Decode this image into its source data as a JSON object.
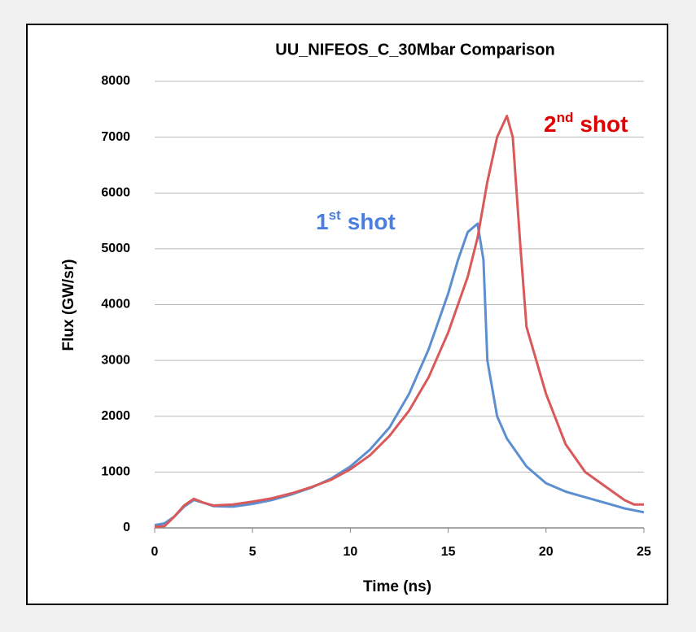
{
  "chart_data": {
    "type": "line",
    "title": "UU_NIFEOS_C_30Mbar Comparison",
    "x_label": "Time (ns)",
    "y_label": "Flux (GW/sr)",
    "xlim": [
      0,
      25
    ],
    "xticks": [
      0,
      5,
      10,
      15,
      20,
      25
    ],
    "ylim": [
      0,
      8000
    ],
    "yticks": [
      0,
      1000,
      2000,
      3000,
      4000,
      5000,
      6000,
      7000,
      8000
    ],
    "grid": true,
    "series": [
      {
        "color": "#5b8fd0",
        "x": [
          0,
          0.5,
          1,
          1.5,
          2,
          2.5,
          3,
          4,
          5,
          6,
          7,
          8,
          9,
          10,
          11,
          12,
          13,
          14,
          15,
          15.5,
          16,
          16.5,
          16.8,
          17,
          17.5,
          18,
          19,
          20,
          21,
          22,
          23,
          24,
          25
        ],
        "values": [
          50,
          80,
          200,
          380,
          500,
          450,
          390,
          380,
          430,
          500,
          600,
          720,
          880,
          1100,
          1400,
          1800,
          2400,
          3200,
          4200,
          4800,
          5300,
          5450,
          4800,
          3000,
          2000,
          1600,
          1100,
          800,
          650,
          550,
          450,
          350,
          280
        ]
      },
      {
        "color": "#d9595a",
        "x": [
          0,
          0.5,
          1,
          1.5,
          2,
          2.5,
          3,
          4,
          5,
          6,
          7,
          8,
          9,
          10,
          11,
          12,
          13,
          14,
          15,
          16,
          16.5,
          17,
          17.5,
          18,
          18.3,
          18.7,
          19,
          19.5,
          20,
          21,
          22,
          23,
          24,
          24.5,
          25
        ],
        "values": [
          20,
          30,
          200,
          400,
          520,
          450,
          400,
          420,
          470,
          530,
          620,
          730,
          860,
          1050,
          1300,
          1650,
          2100,
          2700,
          3500,
          4500,
          5200,
          6200,
          7000,
          7380,
          7000,
          5000,
          3600,
          3000,
          2400,
          1500,
          1000,
          750,
          500,
          420,
          420
        ]
      }
    ],
    "annotations": [
      {
        "number": "1",
        "suffix": "st",
        "text": "shot",
        "color": "#4a7fe0"
      },
      {
        "number": "2",
        "suffix": "nd",
        "text": "shot",
        "color": "#e00000"
      }
    ]
  }
}
